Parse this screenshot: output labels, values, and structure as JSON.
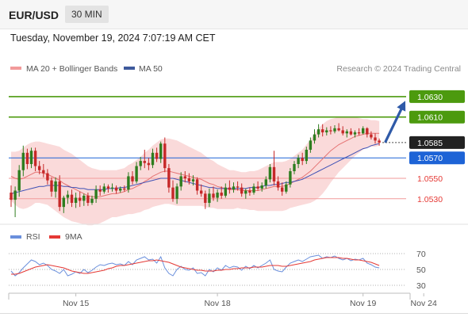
{
  "header": {
    "symbol": "EUR/USD",
    "timeframe": "30 MIN",
    "datetime": "Tuesday, November 19, 2024 7:07:19 AM CET"
  },
  "legend": {
    "ma20_label": "MA 20 + Bollinger Bands",
    "ma50_label": "MA 50",
    "credit": "Research © 2024 Trading Central"
  },
  "colors": {
    "bull": "#2e7d1f",
    "bear": "#c62828",
    "band": "#f9d3d3",
    "ma20": "#e57373",
    "ma50": "#3f51b5",
    "resistance": "#4c9a0e",
    "support_blue": "#1d63d6",
    "support_red": "#e53935",
    "current": "#222222",
    "arrow": "#2f5aa8",
    "rsi": "#6a8fdc",
    "rsi_ma": "#e53935"
  },
  "chart_data": [
    {
      "type": "candlestick",
      "ylim": [
        1.0512,
        1.0647
      ],
      "levels": [
        {
          "value": 1.063,
          "label": "1.0630",
          "kind": "resistance"
        },
        {
          "value": 1.061,
          "label": "1.0610",
          "kind": "resistance"
        },
        {
          "value": 1.0585,
          "label": "1.0585",
          "kind": "current"
        },
        {
          "value": 1.057,
          "label": "1.0570",
          "kind": "support"
        },
        {
          "value": 1.055,
          "label": "1.0550",
          "kind": "support-minor"
        },
        {
          "value": 1.053,
          "label": "1.0530",
          "kind": "support-minor"
        }
      ],
      "projection": {
        "from": 1.0586,
        "to": 1.0629
      },
      "x_labels": [
        {
          "i": 16,
          "label": "Nov 15"
        },
        {
          "i": 51,
          "label": "Nov 18"
        },
        {
          "i": 87,
          "label": "Nov 19"
        },
        {
          "i": 102,
          "label": "Nov 24"
        }
      ],
      "candles": [
        [
          1.0536,
          1.0543,
          1.0522,
          1.0529
        ],
        [
          1.0529,
          1.0542,
          1.0512,
          1.0538
        ],
        [
          1.0538,
          1.0563,
          1.0532,
          1.0558
        ],
        [
          1.0558,
          1.0582,
          1.0552,
          1.0575
        ],
        [
          1.0575,
          1.0579,
          1.0559,
          1.0564
        ],
        [
          1.0564,
          1.058,
          1.056,
          1.0577
        ],
        [
          1.0577,
          1.058,
          1.0557,
          1.0562
        ],
        [
          1.0562,
          1.0567,
          1.0554,
          1.0558
        ],
        [
          1.0558,
          1.0564,
          1.0551,
          1.0555
        ],
        [
          1.0555,
          1.0559,
          1.0544,
          1.0548
        ],
        [
          1.0548,
          1.0551,
          1.0532,
          1.0537
        ],
        [
          1.0537,
          1.0551,
          1.0531,
          1.0547
        ],
        [
          1.0547,
          1.0553,
          1.0518,
          1.0522
        ],
        [
          1.0522,
          1.0533,
          1.0516,
          1.0531
        ],
        [
          1.0531,
          1.0538,
          1.0525,
          1.0534
        ],
        [
          1.0534,
          1.0539,
          1.0522,
          1.0526
        ],
        [
          1.0526,
          1.0536,
          1.0521,
          1.0531
        ],
        [
          1.0531,
          1.0537,
          1.0522,
          1.0528
        ],
        [
          1.0528,
          1.0535,
          1.0523,
          1.0533
        ],
        [
          1.0533,
          1.0536,
          1.0523,
          1.0526
        ],
        [
          1.0526,
          1.0533,
          1.0524,
          1.053
        ],
        [
          1.053,
          1.0543,
          1.0526,
          1.0539
        ],
        [
          1.0539,
          1.0543,
          1.0533,
          1.0537
        ],
        [
          1.0537,
          1.0545,
          1.0535,
          1.0542
        ],
        [
          1.0542,
          1.0544,
          1.0536,
          1.054
        ],
        [
          1.054,
          1.0545,
          1.0537,
          1.0541
        ],
        [
          1.0541,
          1.0543,
          1.0535,
          1.0538
        ],
        [
          1.0538,
          1.0542,
          1.0536,
          1.054
        ],
        [
          1.054,
          1.0543,
          1.0537,
          1.0539
        ],
        [
          1.0539,
          1.0556,
          1.0536,
          1.0552
        ],
        [
          1.0552,
          1.0557,
          1.0544,
          1.0547
        ],
        [
          1.0547,
          1.0566,
          1.0545,
          1.0562
        ],
        [
          1.0562,
          1.0571,
          1.0558,
          1.0567
        ],
        [
          1.0567,
          1.0578,
          1.056,
          1.0565
        ],
        [
          1.0565,
          1.057,
          1.0558,
          1.0563
        ],
        [
          1.0563,
          1.0579,
          1.056,
          1.0575
        ],
        [
          1.0575,
          1.058,
          1.0566,
          1.0569
        ],
        [
          1.0569,
          1.0586,
          1.0565,
          1.0584
        ],
        [
          1.0584,
          1.059,
          1.0556,
          1.056
        ],
        [
          1.056,
          1.0564,
          1.0536,
          1.0541
        ],
        [
          1.0541,
          1.0548,
          1.0527,
          1.053
        ],
        [
          1.053,
          1.0545,
          1.0525,
          1.0542
        ],
        [
          1.0542,
          1.0556,
          1.0538,
          1.0552
        ],
        [
          1.0552,
          1.0557,
          1.0546,
          1.055
        ],
        [
          1.055,
          1.0555,
          1.0544,
          1.0547
        ],
        [
          1.0547,
          1.0553,
          1.0543,
          1.0549
        ],
        [
          1.0549,
          1.0551,
          1.0534,
          1.0538
        ],
        [
          1.0538,
          1.0544,
          1.0532,
          1.0535
        ],
        [
          1.0535,
          1.0538,
          1.052,
          1.0526
        ],
        [
          1.0526,
          1.054,
          1.0522,
          1.0535
        ],
        [
          1.0535,
          1.0542,
          1.0528,
          1.0531
        ],
        [
          1.0531,
          1.0539,
          1.0527,
          1.0536
        ],
        [
          1.0536,
          1.0542,
          1.053,
          1.0533
        ],
        [
          1.0533,
          1.0545,
          1.0531,
          1.0541
        ],
        [
          1.0541,
          1.0548,
          1.0535,
          1.0539
        ],
        [
          1.0539,
          1.0546,
          1.0536,
          1.0542
        ],
        [
          1.0542,
          1.0547,
          1.0538,
          1.0541
        ],
        [
          1.0541,
          1.0545,
          1.0532,
          1.0535
        ],
        [
          1.0535,
          1.054,
          1.053,
          1.0538
        ],
        [
          1.0538,
          1.0541,
          1.0533,
          1.0536
        ],
        [
          1.0536,
          1.0545,
          1.0534,
          1.0542
        ],
        [
          1.0542,
          1.0547,
          1.0538,
          1.054
        ],
        [
          1.054,
          1.0546,
          1.0537,
          1.0543
        ],
        [
          1.0543,
          1.0552,
          1.054,
          1.0549
        ],
        [
          1.0549,
          1.0564,
          1.0546,
          1.0561
        ],
        [
          1.0561,
          1.0577,
          1.0543,
          1.0547
        ],
        [
          1.0547,
          1.0552,
          1.0538,
          1.0541
        ],
        [
          1.0541,
          1.0546,
          1.0533,
          1.0537
        ],
        [
          1.0537,
          1.0547,
          1.0535,
          1.0544
        ],
        [
          1.0544,
          1.056,
          1.0541,
          1.0557
        ],
        [
          1.0557,
          1.0567,
          1.0554,
          1.0564
        ],
        [
          1.0564,
          1.0573,
          1.056,
          1.057
        ],
        [
          1.057,
          1.0575,
          1.0563,
          1.0567
        ],
        [
          1.0567,
          1.0581,
          1.0564,
          1.0578
        ],
        [
          1.0578,
          1.059,
          1.0575,
          1.0587
        ],
        [
          1.0587,
          1.0598,
          1.0584,
          1.0593
        ],
        [
          1.0593,
          1.0603,
          1.059,
          1.0598
        ],
        [
          1.0598,
          1.0603,
          1.0591,
          1.0595
        ],
        [
          1.0595,
          1.06,
          1.0592,
          1.0597
        ],
        [
          1.0597,
          1.0601,
          1.0593,
          1.0596
        ],
        [
          1.0596,
          1.0602,
          1.0594,
          1.0599
        ],
        [
          1.0599,
          1.0604,
          1.0596,
          1.0597
        ],
        [
          1.0597,
          1.0601,
          1.0592,
          1.0594
        ],
        [
          1.0594,
          1.0598,
          1.059,
          1.0596
        ],
        [
          1.0596,
          1.0599,
          1.0592,
          1.0593
        ],
        [
          1.0593,
          1.0597,
          1.059,
          1.0595
        ],
        [
          1.0595,
          1.0599,
          1.0592,
          1.0594
        ],
        [
          1.0594,
          1.0601,
          1.0593,
          1.0599
        ],
        [
          1.0599,
          1.06,
          1.059,
          1.0593
        ],
        [
          1.0593,
          1.0596,
          1.0588,
          1.059
        ],
        [
          1.059,
          1.0594,
          1.0584,
          1.0587
        ],
        [
          1.0587,
          1.0589,
          1.0582,
          1.0585
        ]
      ],
      "ma20": [
        1.0552,
        1.055,
        1.0549,
        1.055,
        1.0552,
        1.0554,
        1.0556,
        1.0556,
        1.0555,
        1.0554,
        1.0552,
        1.055,
        1.0548,
        1.0545,
        1.0543,
        1.0541,
        1.0539,
        1.0537,
        1.0535,
        1.0533,
        1.0532,
        1.0532,
        1.0532,
        1.0533,
        1.0534,
        1.0535,
        1.0535,
        1.0536,
        1.0537,
        1.0539,
        1.054,
        1.0542,
        1.0544,
        1.0547,
        1.0549,
        1.0552,
        1.0554,
        1.0556,
        1.0557,
        1.0557,
        1.0556,
        1.0555,
        1.0554,
        1.0553,
        1.0552,
        1.0551,
        1.055,
        1.0549,
        1.0547,
        1.0545,
        1.0544,
        1.0542,
        1.0541,
        1.054,
        1.0539,
        1.0539,
        1.0539,
        1.0538,
        1.0538,
        1.0538,
        1.0538,
        1.0538,
        1.0539,
        1.054,
        1.0541,
        1.0542,
        1.0542,
        1.0542,
        1.0543,
        1.0545,
        1.0547,
        1.0549,
        1.0551,
        1.0554,
        1.0557,
        1.0561,
        1.0565,
        1.0569,
        1.0573,
        1.0577,
        1.058,
        1.0583,
        1.0585,
        1.0587,
        1.0589,
        1.0591,
        1.0592,
        1.0593,
        1.0594,
        1.0594,
        1.0594,
        1.0594
      ],
      "ma50": [
        1.0535,
        1.0536,
        1.0537,
        1.0538,
        1.0539,
        1.054,
        1.0541,
        1.0542,
        1.0542,
        1.0543,
        1.0543,
        1.0543,
        1.0543,
        1.0542,
        1.0542,
        1.0541,
        1.0541,
        1.054,
        1.054,
        1.0539,
        1.0539,
        1.0539,
        1.0539,
        1.0539,
        1.054,
        1.054,
        1.054,
        1.0541,
        1.0541,
        1.0542,
        1.0543,
        1.0544,
        1.0545,
        1.0546,
        1.0547,
        1.0548,
        1.0549,
        1.055,
        1.055,
        1.055,
        1.055,
        1.0549,
        1.0548,
        1.0547,
        1.0546,
        1.0545,
        1.0544,
        1.0543,
        1.0542,
        1.0541,
        1.0541,
        1.054,
        1.054,
        1.054,
        1.054,
        1.054,
        1.054,
        1.054,
        1.054,
        1.0541,
        1.0541,
        1.0541,
        1.0542,
        1.0543,
        1.0543,
        1.0544,
        1.0544,
        1.0545,
        1.0546,
        1.0546,
        1.0547,
        1.0548,
        1.0549,
        1.0551,
        1.0553,
        1.0555,
        1.0557,
        1.0559,
        1.0561,
        1.0563,
        1.0565,
        1.0567,
        1.0569,
        1.0571,
        1.0573,
        1.0575,
        1.0577,
        1.0579,
        1.058,
        1.0582,
        1.0583,
        1.0584
      ],
      "band_width": [
        0.0024,
        0.0026,
        0.0028,
        0.003,
        0.0031,
        0.0031,
        0.003,
        0.003,
        0.003,
        0.003,
        0.0031,
        0.0032,
        0.0033,
        0.0033,
        0.0033,
        0.0033,
        0.0032,
        0.0031,
        0.003,
        0.0029,
        0.0028,
        0.0027,
        0.0026,
        0.0025,
        0.0024,
        0.0023,
        0.0023,
        0.0023,
        0.0023,
        0.0024,
        0.0025,
        0.0026,
        0.0027,
        0.0028,
        0.0029,
        0.003,
        0.0031,
        0.0032,
        0.0032,
        0.0032,
        0.0032,
        0.0032,
        0.0031,
        0.003,
        0.0029,
        0.0028,
        0.0027,
        0.0026,
        0.0025,
        0.0024,
        0.0023,
        0.0022,
        0.0021,
        0.002,
        0.0019,
        0.0019,
        0.0018,
        0.0018,
        0.0018,
        0.0019,
        0.0019,
        0.002,
        0.0021,
        0.0022,
        0.0023,
        0.0024,
        0.0024,
        0.0024,
        0.0024,
        0.0024,
        0.0025,
        0.0026,
        0.0027,
        0.0029,
        0.0031,
        0.0033,
        0.0034,
        0.0034,
        0.0033,
        0.0031,
        0.0029,
        0.0027,
        0.0025,
        0.0023,
        0.0021,
        0.0019,
        0.0017,
        0.0015,
        0.0014,
        0.0013,
        0.0013,
        0.0012
      ]
    },
    {
      "type": "line",
      "indicator": "RSI",
      "legend": [
        {
          "name": "RSI"
        },
        {
          "name": "9MA"
        }
      ],
      "ylim": [
        25,
        75
      ],
      "ticks": [
        70,
        50,
        30
      ],
      "dotted_levels": [
        70,
        50,
        30
      ],
      "current_marker": 50,
      "rsi": [
        48,
        42,
        46,
        52,
        57,
        62,
        60,
        56,
        58,
        55,
        50,
        48,
        45,
        50,
        42,
        44,
        47,
        45,
        50,
        46,
        49,
        53,
        56,
        55,
        57,
        58,
        56,
        57,
        55,
        60,
        56,
        62,
        64,
        66,
        62,
        63,
        58,
        66,
        52,
        45,
        42,
        50,
        54,
        50,
        49,
        52,
        45,
        46,
        42,
        50,
        47,
        52,
        49,
        55,
        52,
        54,
        53,
        49,
        54,
        51,
        55,
        52,
        55,
        58,
        62,
        50,
        48,
        47,
        53,
        58,
        60,
        62,
        60,
        63,
        66,
        67,
        68,
        64,
        66,
        65,
        67,
        64,
        62,
        64,
        61,
        63,
        62,
        64,
        58,
        56,
        53,
        52
      ],
      "ma9": [
        44,
        44,
        45,
        47,
        49,
        51,
        53,
        54,
        55,
        56,
        55,
        54,
        53,
        52,
        50,
        48,
        47,
        46,
        45,
        45,
        46,
        47,
        48,
        49,
        51,
        52,
        54,
        55,
        55,
        56,
        57,
        58,
        59,
        60,
        61,
        61,
        62,
        61,
        60,
        59,
        57,
        55,
        53,
        52,
        51,
        50,
        49,
        49,
        48,
        48,
        48,
        49,
        49,
        50,
        50,
        51,
        51,
        52,
        52,
        52,
        53,
        53,
        53,
        54,
        55,
        55,
        55,
        54,
        54,
        55,
        56,
        57,
        58,
        59,
        60,
        62,
        63,
        64,
        65,
        65,
        65,
        65,
        64,
        64,
        63,
        62,
        62,
        61,
        60,
        59,
        57,
        55
      ]
    }
  ]
}
